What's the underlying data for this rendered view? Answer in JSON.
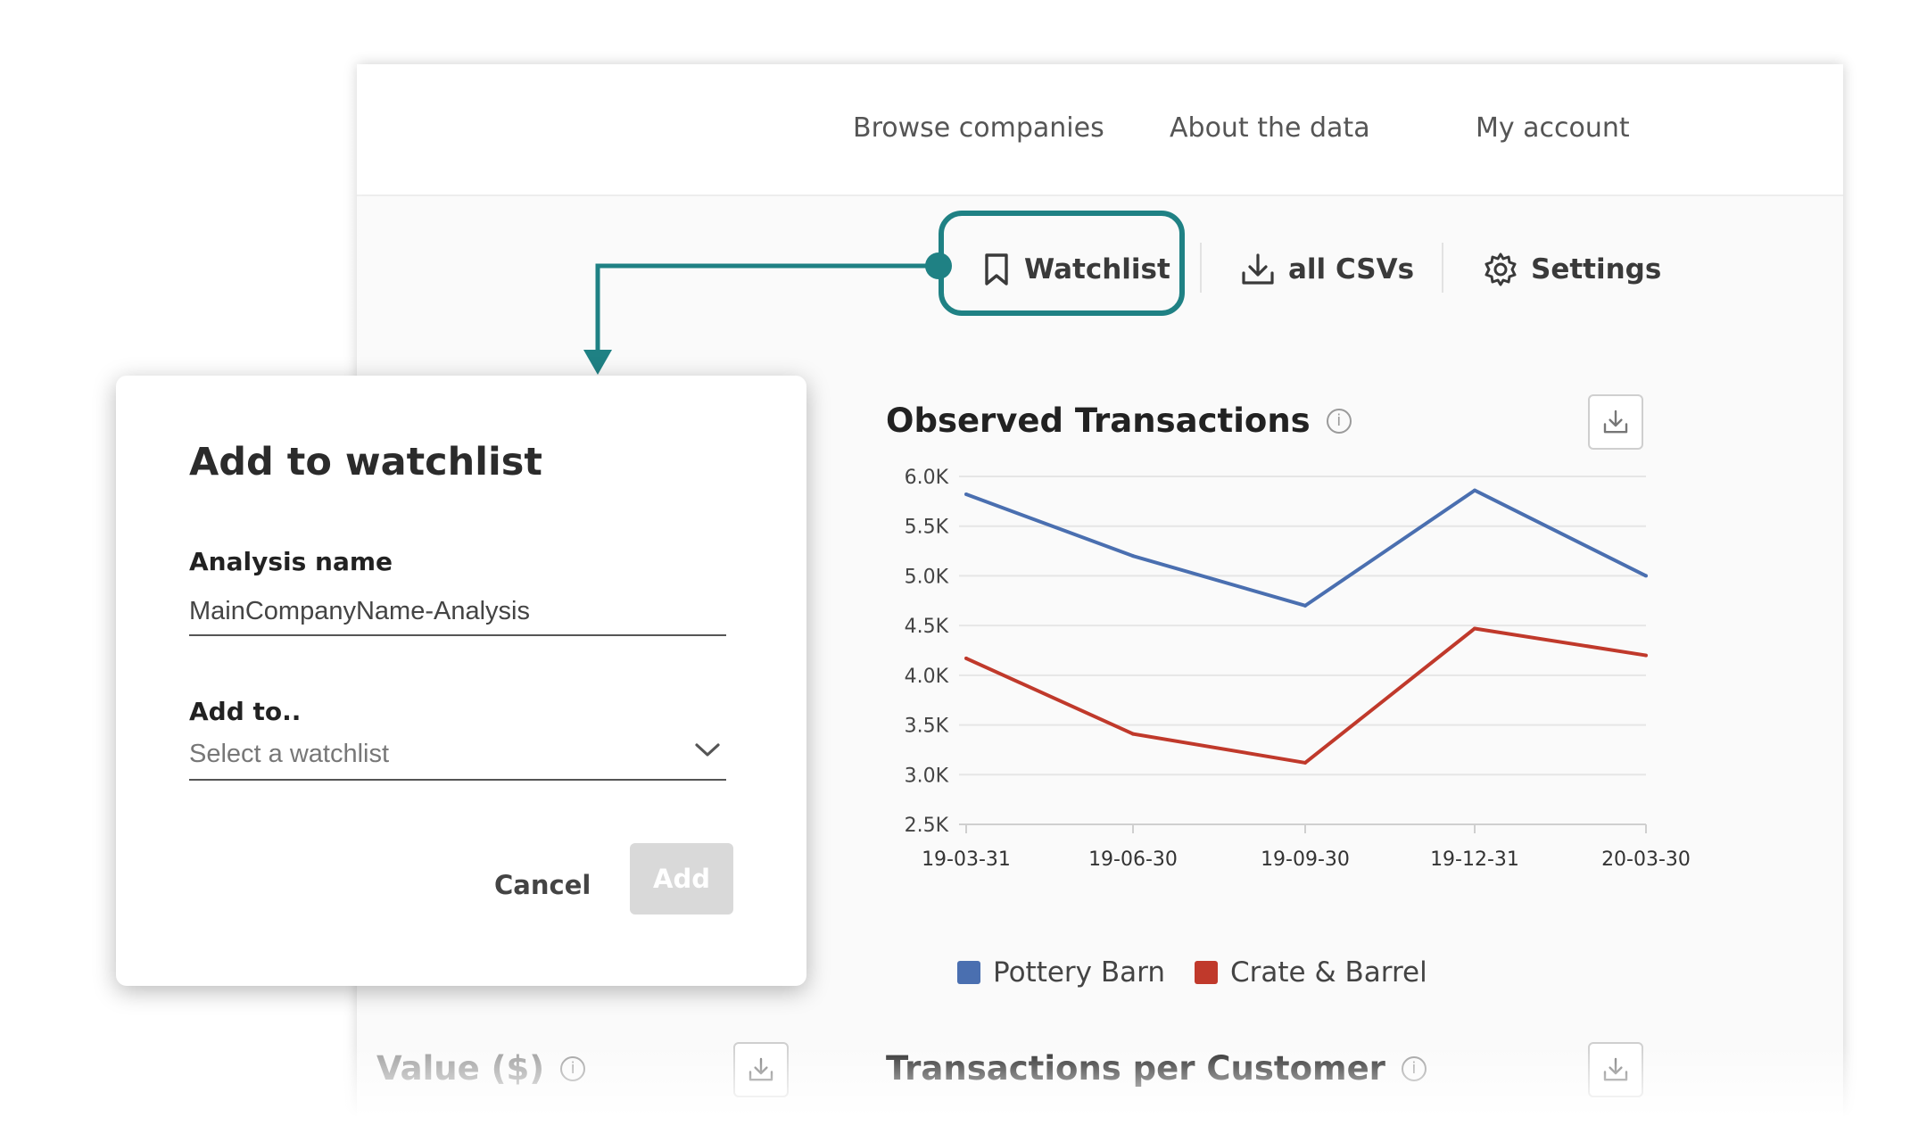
{
  "nav": {
    "browse": "Browse companies",
    "about": "About the data",
    "account": "My account"
  },
  "toolbar": {
    "watchlist": "Watchlist",
    "csvs": "all CSVs",
    "settings": "Settings"
  },
  "accent_color": "#1f8184",
  "modal": {
    "title": "Add to watchlist",
    "analysis_label": "Analysis name",
    "analysis_value": "MainCompanyName-Analysis",
    "add_to_label": "Add to..",
    "select_placeholder": "Select a watchlist",
    "cancel": "Cancel",
    "add": "Add"
  },
  "cards": {
    "observed_title": "Observed Transactions",
    "value_title": "Value ($)",
    "per_customer_title": "Transactions per Customer"
  },
  "chart_data": {
    "type": "line",
    "title": "Observed Transactions",
    "x": [
      "19-03-31",
      "19-06-30",
      "19-09-30",
      "19-12-31",
      "20-03-30"
    ],
    "y_ticks": [
      "6.0K",
      "5.5K",
      "5.0K",
      "4.5K",
      "4.0K",
      "3.5K",
      "3.0K",
      "2.5K"
    ],
    "ylim": [
      2500,
      6000
    ],
    "grid": true,
    "legend_position": "bottom-left",
    "series": [
      {
        "name": "Pottery Barn",
        "color": "#4a6fb0",
        "values": [
          5820,
          5200,
          4700,
          5860,
          5000
        ]
      },
      {
        "name": "Crate & Barrel",
        "color": "#c0392b",
        "values": [
          4170,
          3410,
          3120,
          4470,
          4200
        ]
      }
    ]
  }
}
